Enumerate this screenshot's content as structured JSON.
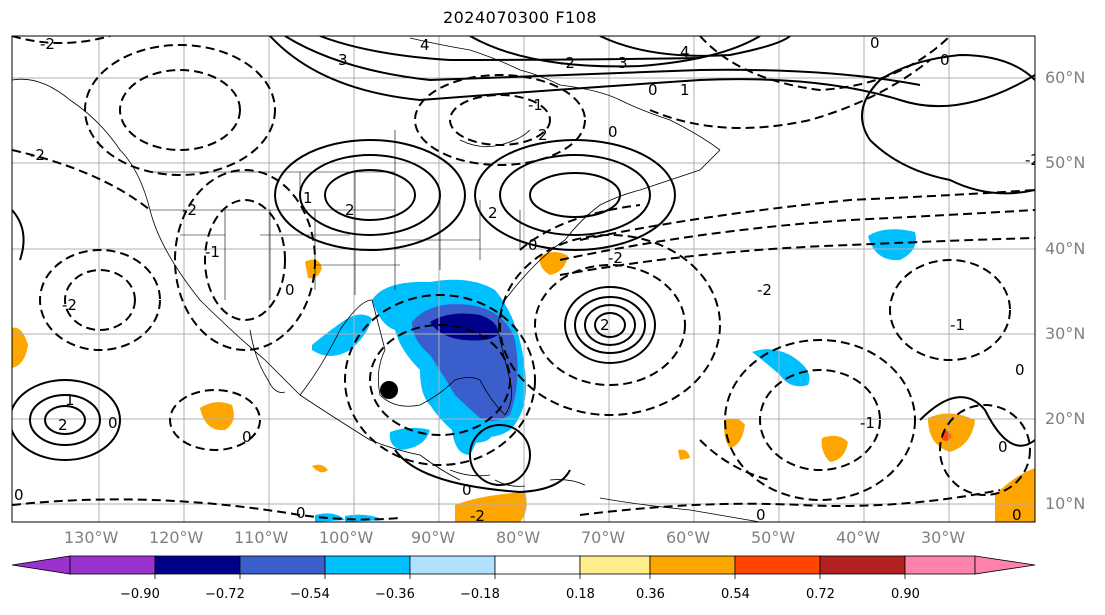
{
  "title": "2024070300 F108",
  "lat_labels": [
    "60°N",
    "50°N",
    "40°N",
    "30°N",
    "20°N",
    "10°N"
  ],
  "lon_labels": [
    "130°W",
    "120°W",
    "110°W",
    "100°W",
    "90°W",
    "80°W",
    "70°W",
    "60°W",
    "50°W",
    "40°W",
    "30°W"
  ],
  "colorbar": {
    "ticks": [
      "−0.90",
      "−0.72",
      "−0.54",
      "−0.36",
      "−0.18",
      "0.18",
      "0.36",
      "0.54",
      "0.72",
      "0.90"
    ],
    "colors": [
      "#9a32cd",
      "#00008b",
      "#3a5fcd",
      "#00bfff",
      "#b0e2ff",
      "#ffffff",
      "#ffec8b",
      "#ffa500",
      "#ff4500",
      "#b22222",
      "#ff82ab"
    ]
  },
  "contour_labels": {
    "neg2": "-2",
    "neg1": "-1",
    "zero": "0",
    "one": "1",
    "two": "2",
    "three": "3",
    "four": "4"
  },
  "marker": {
    "type": "filled-circle",
    "color": "#000000"
  }
}
